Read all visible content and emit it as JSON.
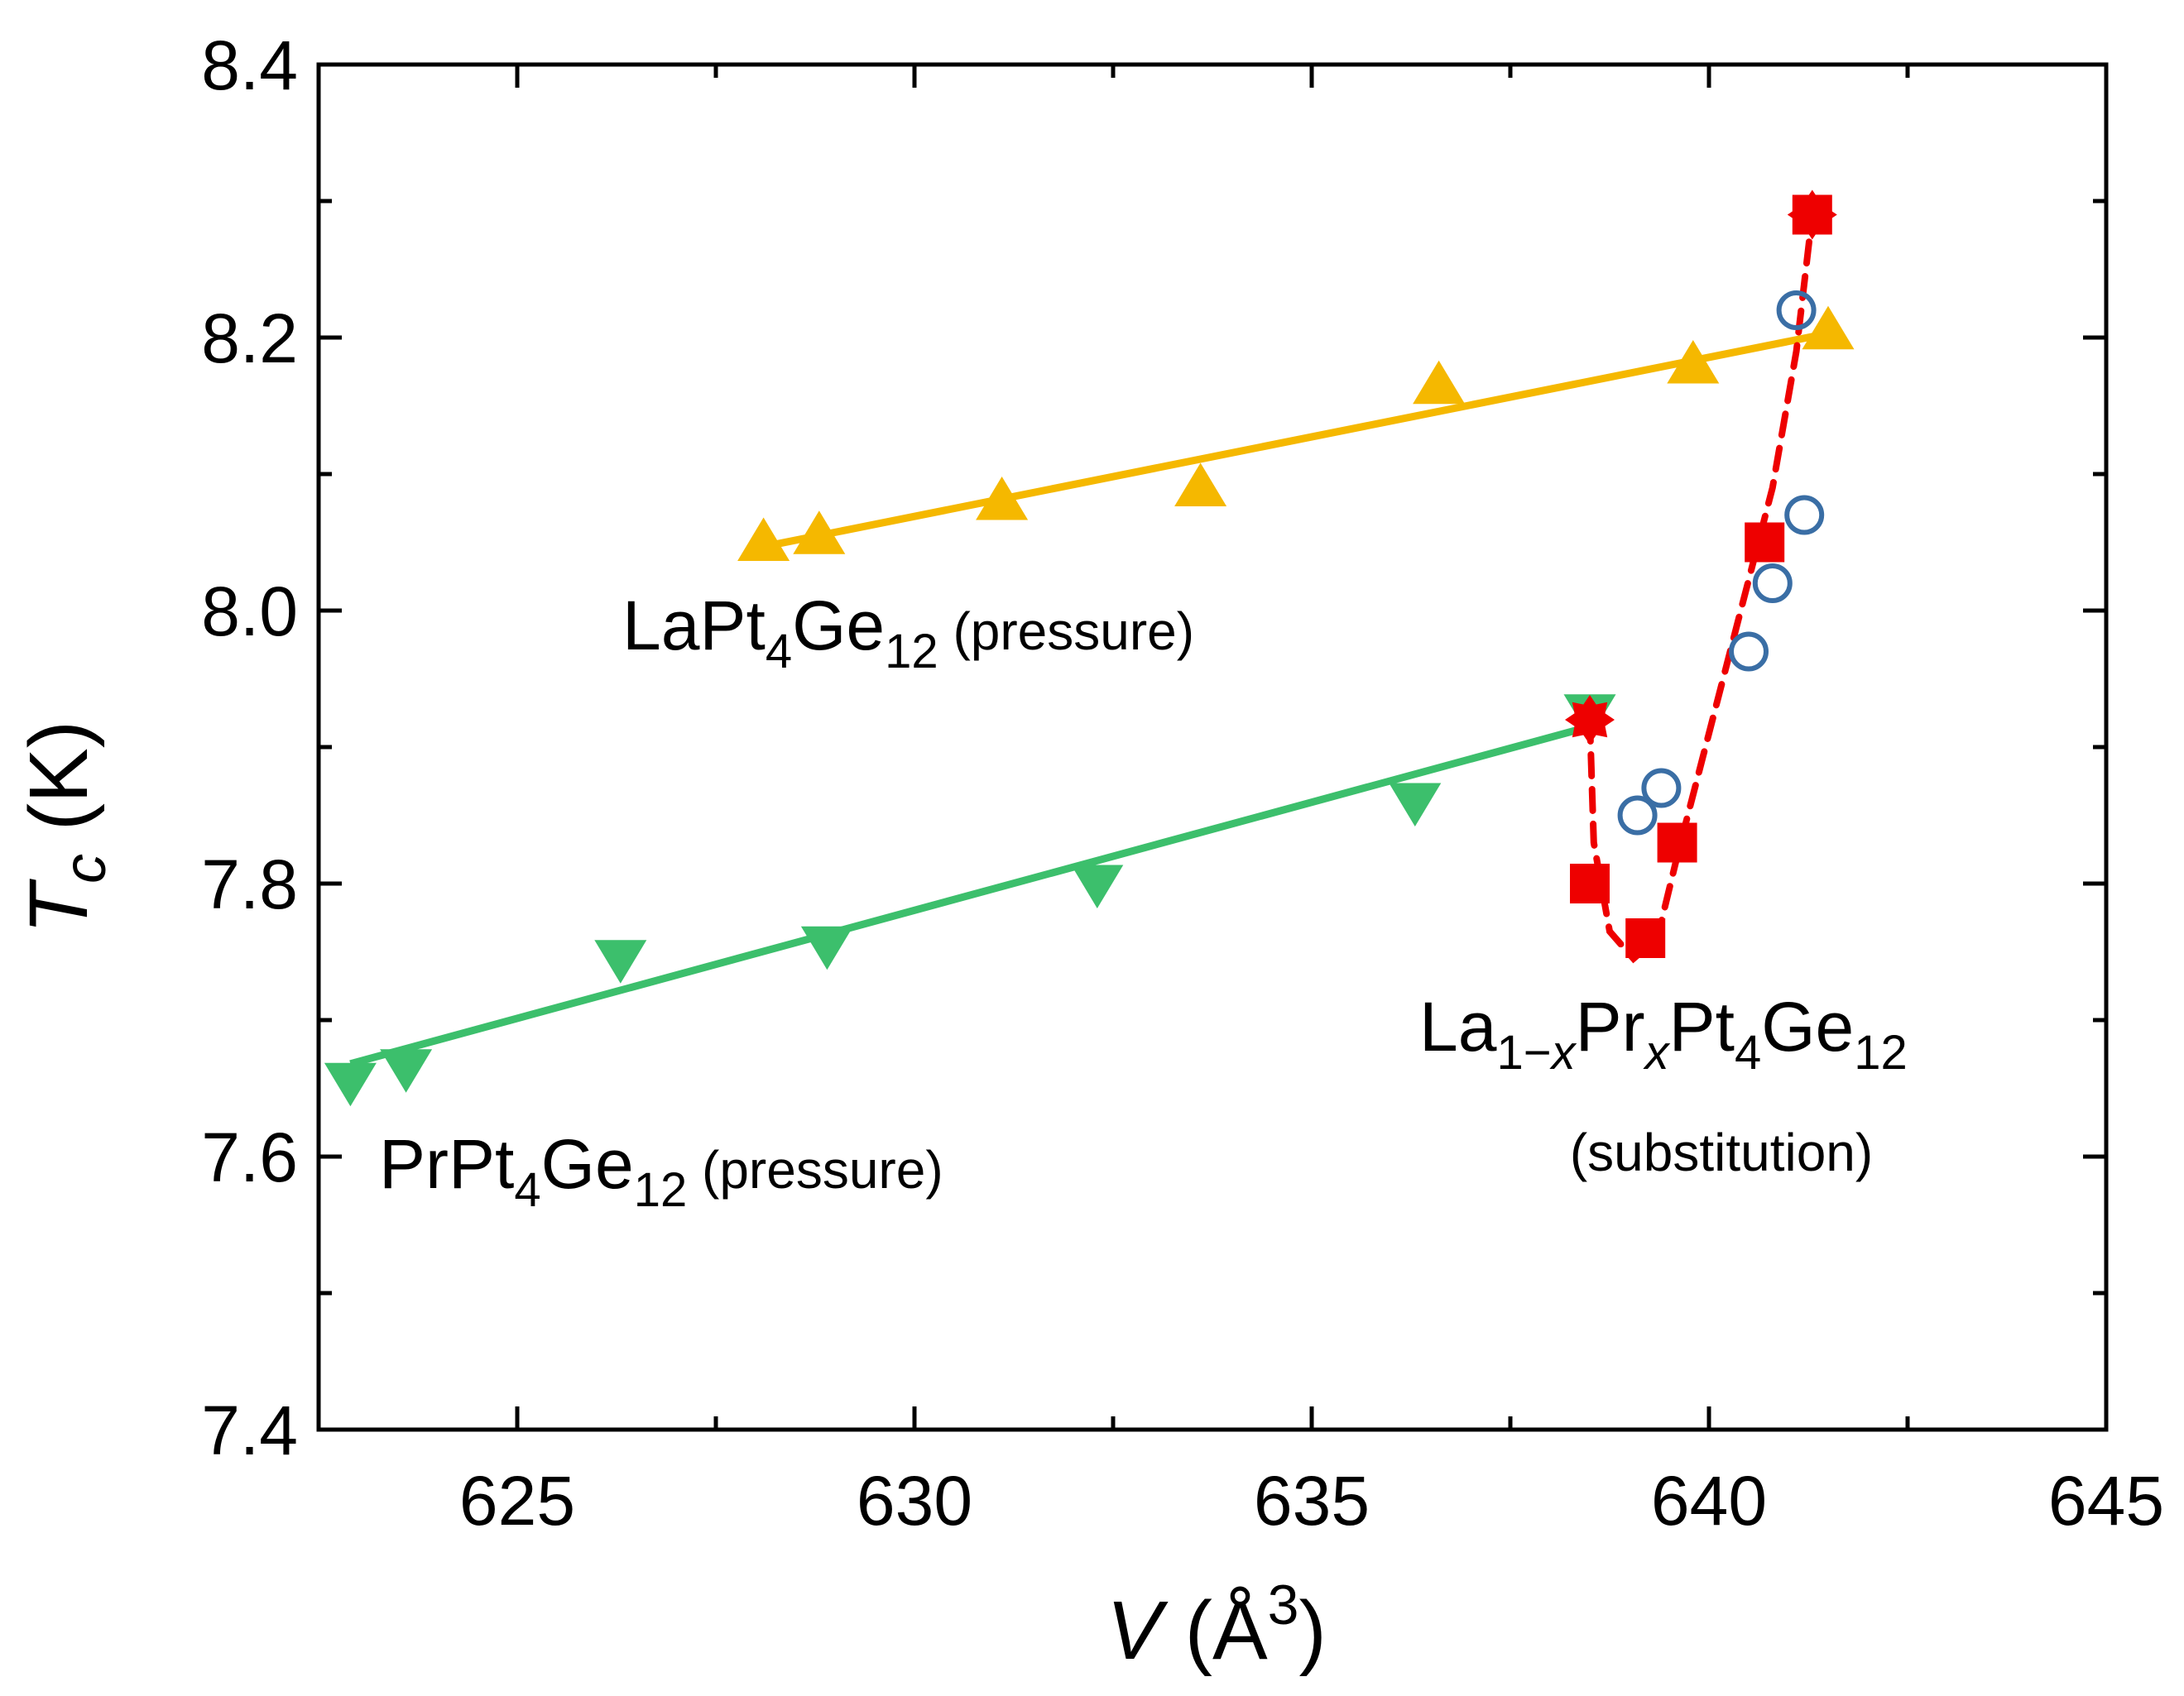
{
  "chart_data": {
    "type": "scatter",
    "title": "",
    "xlabel": {
      "italic": "V",
      "rest": " (Å",
      "sup": "3",
      "close": ")"
    },
    "ylabel": {
      "italic": "T",
      "sub": "c",
      "rest": " (K)"
    },
    "xlim": [
      622.5,
      645
    ],
    "ylim": [
      7.4,
      8.4
    ],
    "xticks": [
      625,
      630,
      635,
      640,
      645
    ],
    "xtick_labels": [
      "625",
      "630",
      "635",
      "640",
      "645"
    ],
    "yticks": [
      7.4,
      7.6,
      7.8,
      8.0,
      8.2,
      8.4
    ],
    "ytick_labels": [
      "7.4",
      "7.6",
      "7.8",
      "8.0",
      "8.2",
      "8.4"
    ],
    "series": [
      {
        "name": "LaPt4Ge12 (pressure)",
        "marker": "triangle-up",
        "color": "#F5B800",
        "x": [
          628.1,
          628.8,
          631.1,
          633.6,
          636.6,
          639.8,
          641.5
        ],
        "y": [
          8.05,
          8.055,
          8.08,
          8.09,
          8.165,
          8.18,
          8.205
        ],
        "fit": {
          "x": [
            628.2,
            641.5
          ],
          "y": [
            8.048,
            8.203
          ]
        }
      },
      {
        "name": "PrPt4Ge12 (pressure)",
        "marker": "triangle-down",
        "color": "#3CBF6C",
        "x": [
          622.9,
          623.6,
          626.3,
          628.9,
          632.3,
          636.3,
          638.5
        ],
        "y": [
          7.655,
          7.665,
          7.745,
          7.755,
          7.8,
          7.86,
          7.925
        ],
        "fit": {
          "x": [
            622.9,
            638.5
          ],
          "y": [
            7.668,
            7.915
          ]
        }
      },
      {
        "name": "La1-xPrxPt4Ge12 (substitution) squares",
        "marker": "square",
        "color": "#EE0000",
        "x": [
          638.5,
          639.2,
          639.6,
          640.7,
          641.3
        ],
        "y": [
          7.8,
          7.76,
          7.83,
          8.05,
          8.29
        ]
      },
      {
        "name": "La1-xPrxPt4Ge12 (substitution) circles",
        "marker": "circle-open",
        "color": "#3A6EA5",
        "x": [
          639.1,
          639.4,
          640.5,
          640.8,
          641.1,
          641.2
        ],
        "y": [
          7.85,
          7.87,
          7.97,
          8.02,
          8.22,
          8.07
        ]
      },
      {
        "name": "La1-xPrxPt4Ge12 (substitution) endpoints",
        "marker": "star",
        "color": "#EE0000",
        "x": [
          638.5,
          641.3
        ],
        "y": [
          7.92,
          8.29
        ]
      },
      {
        "name": "substitution guide",
        "marker": "dashed-line",
        "color": "#EE0000",
        "x": [
          638.5,
          638.55,
          638.75,
          639.05,
          639.35,
          639.6,
          640.0,
          640.4,
          640.8,
          641.1,
          641.3
        ],
        "y": [
          7.92,
          7.83,
          7.765,
          7.745,
          7.76,
          7.82,
          7.91,
          8.0,
          8.09,
          8.19,
          8.29
        ]
      }
    ],
    "annotations": [
      {
        "id": "la",
        "base": "LaPt",
        "s1": "4",
        "mid": "Ge",
        "s2": "12",
        "suffix": " (pressure)"
      },
      {
        "id": "pr",
        "base": "PrPt",
        "s1": "4",
        "mid": "Ge",
        "s2": "12",
        "suffix": " (pressure)"
      },
      {
        "id": "sub",
        "t1": "La",
        "s1": "1−",
        "s1i": "x",
        "t2": "Pr",
        "s2i": "x",
        "t3": "Pt",
        "s3": "4",
        "t4": "Ge",
        "s4": "12",
        "line2": "(substitution)"
      }
    ]
  }
}
